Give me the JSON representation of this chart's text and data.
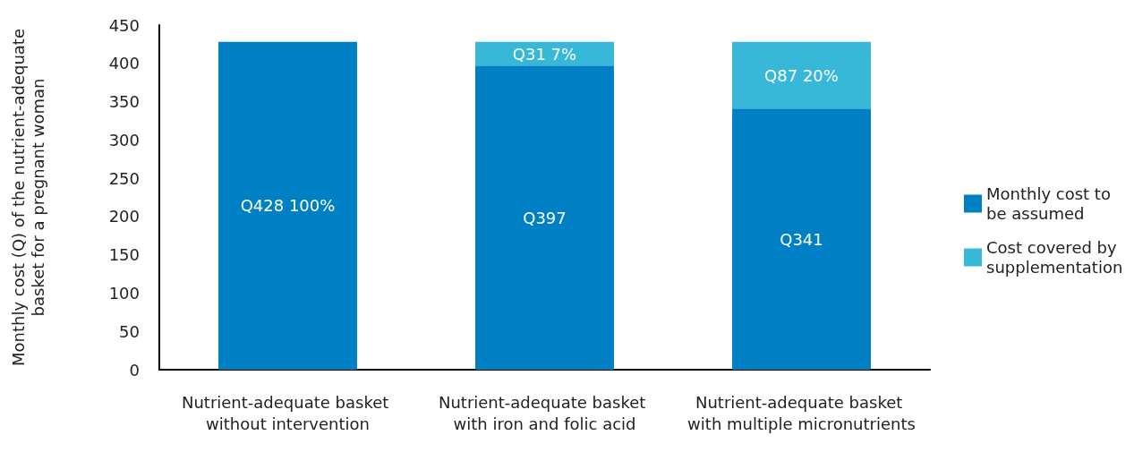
{
  "chart_data": {
    "type": "bar",
    "stacked": true,
    "ylabel": "Monthly cost (Q) of the nutrient-adequate basket for a pregnant woman",
    "categories": [
      "Nutrient-adequate basket without intervention",
      "Nutrient-adequate basket with iron and folic acid",
      "Nutrient-adequate basket with multiple micronutrients"
    ],
    "series": [
      {
        "name": "Monthly cost to be assumed",
        "color": "#0080c4",
        "values": [
          428,
          397,
          341
        ],
        "value_labels": [
          "Q428 100%",
          "Q397",
          "Q341"
        ]
      },
      {
        "name": "Cost covered by supplementation",
        "color": "#38b8d8",
        "values": [
          null,
          31,
          87
        ],
        "value_labels": [
          null,
          "Q31 7%",
          "Q87 20%"
        ]
      }
    ],
    "ylim": [
      0,
      450
    ],
    "yticks": [
      0,
      50,
      100,
      150,
      200,
      250,
      300,
      350,
      400,
      450
    ],
    "grid": false,
    "legend": "right"
  }
}
